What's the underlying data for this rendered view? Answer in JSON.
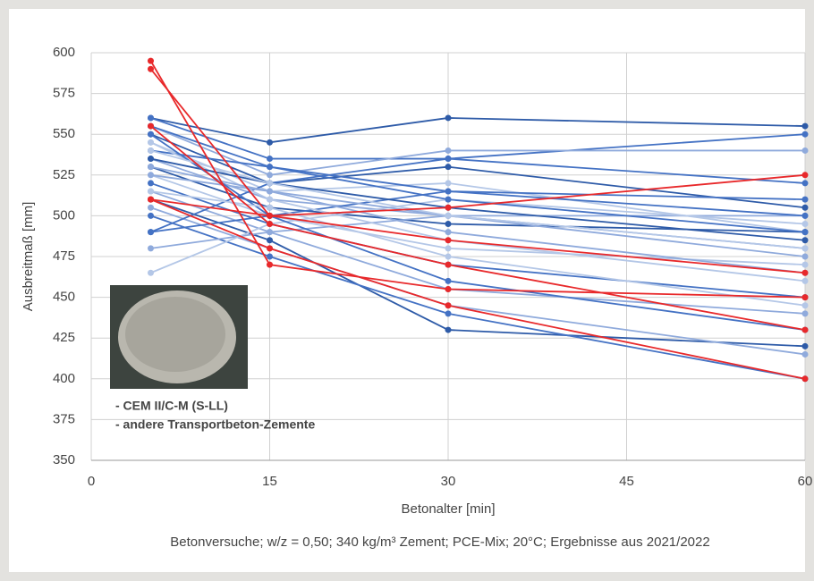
{
  "chart_data": {
    "type": "line",
    "x": [
      5,
      15,
      30,
      60
    ],
    "xlabel": "Betonalter [min]",
    "ylabel": "Ausbreitmaß [mm]",
    "caption": "Betonversuche; w/z = 0,50; 340 kg/m³ Zement; PCE-Mix; 20°C; Ergebnisse aus 2021/2022",
    "xlim": [
      0,
      60
    ],
    "xticks": [
      0,
      15,
      30,
      45,
      60
    ],
    "ylim": [
      350,
      600
    ],
    "yticks": [
      350,
      375,
      400,
      425,
      450,
      475,
      500,
      525,
      550,
      575,
      600
    ],
    "grid": true,
    "annotations": [
      {
        "text": "- CEM II/C-M (S-LL)",
        "color": "#e8292b"
      },
      {
        "text": "- andere Transportbeton-Zemente",
        "color": "#1f3a7a"
      }
    ],
    "series": [
      {
        "color": "#2e5ba8",
        "values": [
          560,
          545,
          560,
          555
        ]
      },
      {
        "color": "#4472c4",
        "values": [
          560,
          535,
          535,
          550
        ]
      },
      {
        "color": "#8faadc",
        "values": [
          555,
          525,
          540,
          540
        ]
      },
      {
        "color": "#2e5ba8",
        "values": [
          550,
          520,
          530,
          505
        ]
      },
      {
        "color": "#b4c7e7",
        "values": [
          545,
          515,
          520,
          490
        ]
      },
      {
        "color": "#4472c4",
        "values": [
          540,
          530,
          515,
          510
        ]
      },
      {
        "color": "#8faadc",
        "values": [
          535,
          510,
          500,
          500
        ]
      },
      {
        "color": "#2e5ba8",
        "values": [
          530,
          505,
          495,
          490
        ]
      },
      {
        "color": "#b4c7e7",
        "values": [
          525,
          500,
          480,
          470
        ]
      },
      {
        "color": "#4472c4",
        "values": [
          520,
          495,
          470,
          450
        ]
      },
      {
        "color": "#8faadc",
        "values": [
          515,
          490,
          455,
          440
        ]
      },
      {
        "color": "#2e5ba8",
        "values": [
          510,
          485,
          430,
          420
        ]
      },
      {
        "color": "#8faadc",
        "values": [
          505,
          480,
          445,
          415
        ]
      },
      {
        "color": "#4472c4",
        "values": [
          500,
          475,
          440,
          400
        ]
      },
      {
        "color": "#4472c4",
        "values": [
          490,
          500,
          515,
          500
        ]
      },
      {
        "color": "#8faadc",
        "values": [
          480,
          490,
          500,
          480
        ]
      },
      {
        "color": "#b4c7e7",
        "values": [
          465,
          495,
          510,
          495
        ]
      },
      {
        "color": "#4472c4",
        "values": [
          490,
          520,
          535,
          520
        ]
      },
      {
        "color": "#b4c7e7",
        "values": [
          545,
          510,
          485,
          460
        ]
      },
      {
        "color": "#2e5ba8",
        "values": [
          535,
          520,
          505,
          485
        ]
      },
      {
        "color": "#8faadc",
        "values": [
          525,
          515,
          490,
          465
        ]
      },
      {
        "color": "#4472c4",
        "values": [
          550,
          500,
          460,
          430
        ]
      },
      {
        "color": "#b4c7e7",
        "values": [
          515,
          505,
          475,
          445
        ]
      },
      {
        "color": "#8faadc",
        "values": [
          530,
          515,
          500,
          475
        ]
      },
      {
        "color": "#4472c4",
        "values": [
          555,
          530,
          510,
          490
        ]
      },
      {
        "color": "#b4c7e7",
        "values": [
          540,
          520,
          500,
          480
        ]
      },
      {
        "color": "#e8292b",
        "values": [
          595,
          470,
          455,
          450
        ]
      },
      {
        "color": "#e8292b",
        "values": [
          590,
          500,
          505,
          525
        ]
      },
      {
        "color": "#e8292b",
        "values": [
          510,
          500,
          485,
          465
        ]
      },
      {
        "color": "#e8292b",
        "values": [
          555,
          495,
          470,
          430
        ]
      },
      {
        "color": "#e8292b",
        "values": [
          510,
          480,
          445,
          400
        ]
      }
    ]
  }
}
